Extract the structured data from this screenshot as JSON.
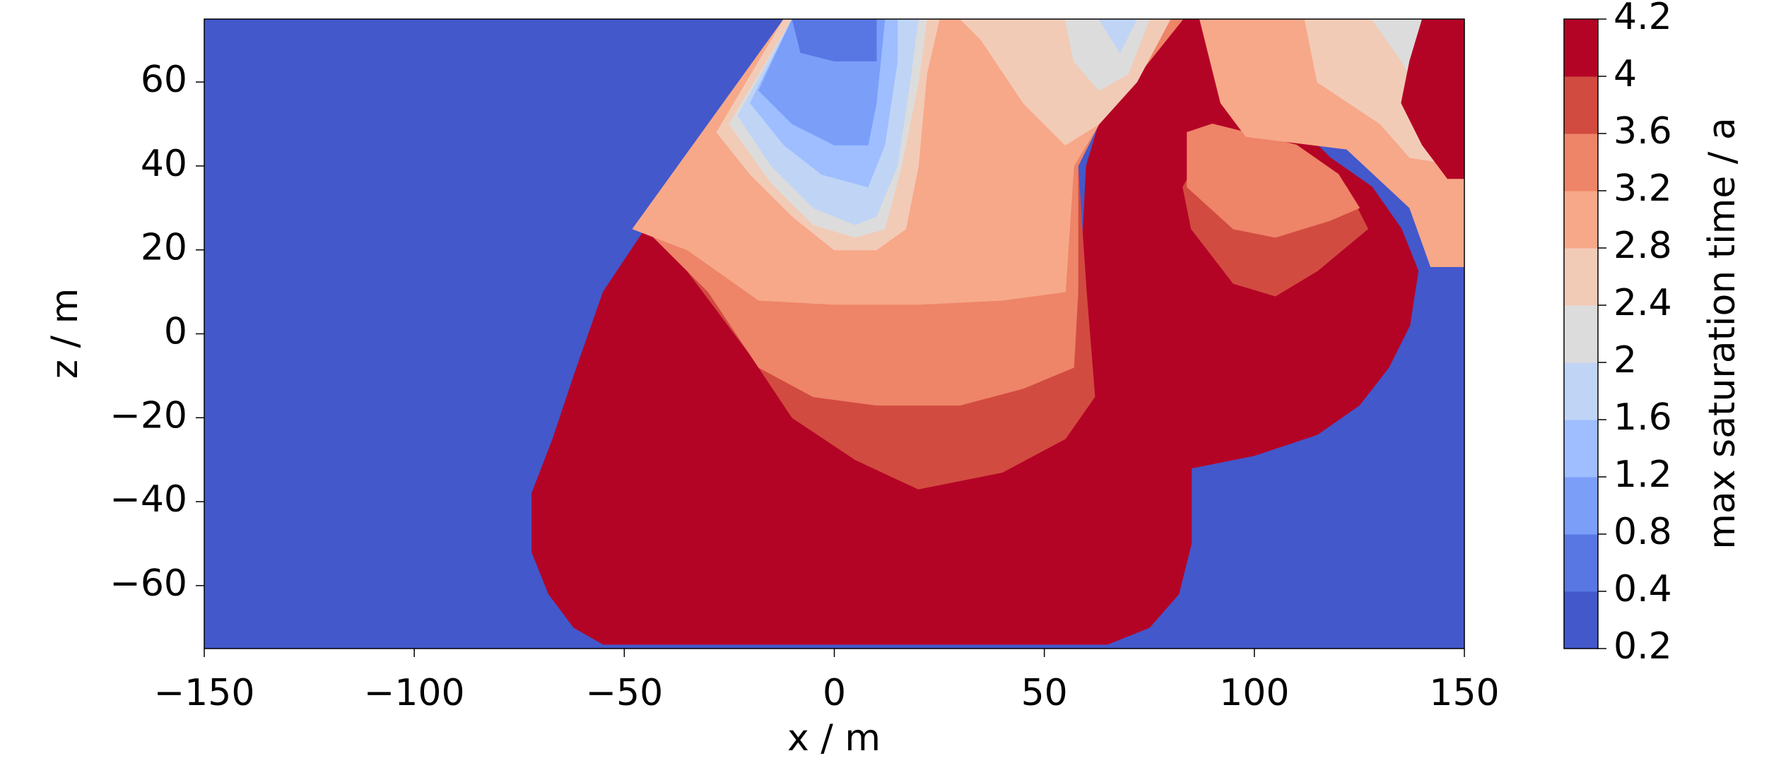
{
  "chart_data": {
    "type": "contour",
    "x_label": "x / m",
    "y_label": "z / m",
    "colorbar_label": "max saturation time / a",
    "xlim": [
      -150,
      150
    ],
    "xticks": [
      {
        "value": -150,
        "label": "−150"
      },
      {
        "value": -100,
        "label": "−100"
      },
      {
        "value": -50,
        "label": "−50"
      },
      0,
      50,
      100,
      150
    ],
    "ylim": [
      -75,
      75
    ],
    "yticks": [
      {
        "value": -60,
        "label": "−60"
      },
      {
        "value": -40,
        "label": "−40"
      },
      {
        "value": -20,
        "label": "−20"
      },
      0,
      20,
      40,
      60
    ],
    "levels": [
      0.2,
      0.4,
      0.8,
      1.2,
      1.6,
      2,
      2.4,
      2.8,
      3.2,
      3.6,
      4,
      4.2
    ],
    "colors": [
      "#4358cb",
      "#5977e3",
      "#7b9ff9",
      "#9ebeff",
      "#c0d4f5",
      "#dddcdc",
      "#f2cbb7",
      "#f7a889",
      "#ee8468",
      "#d24b40",
      "#b40426"
    ],
    "regions": [
      {
        "level": 0.2,
        "points": [
          [
            -150,
            75
          ],
          [
            150,
            75
          ],
          [
            150,
            -75
          ],
          [
            -150,
            -75
          ]
        ]
      },
      {
        "level": 4,
        "points": [
          [
            -45,
            25
          ],
          [
            -55,
            10
          ],
          [
            -62,
            -10
          ],
          [
            -67,
            -25
          ],
          [
            -72,
            -38
          ],
          [
            -72,
            -52
          ],
          [
            -68,
            -62
          ],
          [
            -62,
            -70
          ],
          [
            -55,
            -74
          ],
          [
            65,
            -74
          ],
          [
            75,
            -70
          ],
          [
            82,
            -62
          ],
          [
            85,
            -50
          ],
          [
            85,
            -32
          ],
          [
            100,
            -29
          ],
          [
            115,
            -24
          ],
          [
            125,
            -17
          ],
          [
            132,
            -8
          ],
          [
            137,
            2
          ],
          [
            139,
            15
          ],
          [
            135,
            25
          ],
          [
            128,
            35
          ],
          [
            118,
            42
          ],
          [
            100,
            60
          ],
          [
            90,
            75
          ],
          [
            83,
            75
          ],
          [
            72,
            62
          ],
          [
            63,
            50
          ],
          [
            60,
            40
          ],
          [
            58,
            0
          ],
          [
            40,
            -10
          ],
          [
            20,
            -15
          ],
          [
            0,
            -10
          ],
          [
            -20,
            0
          ],
          [
            -35,
            15
          ]
        ]
      },
      {
        "level": 3.6,
        "points": [
          [
            -45,
            25
          ],
          [
            -35,
            15
          ],
          [
            -20,
            -5
          ],
          [
            -10,
            -20
          ],
          [
            5,
            -30
          ],
          [
            20,
            -37
          ],
          [
            40,
            -33
          ],
          [
            55,
            -25
          ],
          [
            62,
            -15
          ],
          [
            60,
            10
          ],
          [
            58,
            40
          ],
          [
            63,
            50
          ],
          [
            75,
            65
          ],
          [
            83,
            75
          ],
          [
            -12,
            75
          ]
        ]
      },
      {
        "level": 3.2,
        "points": [
          [
            -45,
            25
          ],
          [
            -30,
            10
          ],
          [
            -18,
            -8
          ],
          [
            -5,
            -15
          ],
          [
            10,
            -17
          ],
          [
            30,
            -17
          ],
          [
            45,
            -13
          ],
          [
            57,
            -8
          ],
          [
            58,
            10
          ],
          [
            58,
            40
          ],
          [
            63,
            50
          ],
          [
            75,
            65
          ],
          [
            83,
            75
          ],
          [
            -12,
            75
          ]
        ]
      },
      {
        "level": 2.8,
        "points": [
          [
            -48,
            25
          ],
          [
            -35,
            20
          ],
          [
            -18,
            8
          ],
          [
            0,
            7
          ],
          [
            20,
            7
          ],
          [
            40,
            8
          ],
          [
            55,
            10
          ],
          [
            57,
            40
          ],
          [
            63,
            50
          ],
          [
            72,
            60
          ],
          [
            80,
            75
          ],
          [
            -12,
            75
          ]
        ]
      },
      {
        "level": 2.4,
        "points": [
          [
            30,
            75
          ],
          [
            35,
            70
          ],
          [
            45,
            55
          ],
          [
            55,
            45
          ],
          [
            63,
            50
          ],
          [
            72,
            60
          ],
          [
            80,
            75
          ]
        ]
      },
      {
        "level": 2,
        "points": [
          [
            55,
            75
          ],
          [
            57,
            65
          ],
          [
            63,
            58
          ],
          [
            70,
            62
          ],
          [
            75,
            75
          ]
        ]
      },
      {
        "level": 1.6,
        "points": [
          [
            63,
            75
          ],
          [
            68,
            67
          ],
          [
            72,
            75
          ]
        ]
      },
      {
        "level": 2.4,
        "points": [
          [
            -12,
            75
          ],
          [
            -28,
            48
          ],
          [
            -20,
            38
          ],
          [
            -10,
            28
          ],
          [
            0,
            20
          ],
          [
            10,
            20
          ],
          [
            17,
            25
          ],
          [
            20,
            40
          ],
          [
            22,
            62
          ],
          [
            25,
            75
          ]
        ]
      },
      {
        "level": 2,
        "points": [
          [
            -10,
            75
          ],
          [
            -25,
            50
          ],
          [
            -15,
            36
          ],
          [
            -5,
            26
          ],
          [
            5,
            23
          ],
          [
            12,
            25
          ],
          [
            16,
            40
          ],
          [
            20,
            60
          ],
          [
            22,
            75
          ]
        ]
      },
      {
        "level": 1.6,
        "points": [
          [
            -10,
            75
          ],
          [
            -23,
            52
          ],
          [
            -15,
            40
          ],
          [
            -5,
            30
          ],
          [
            5,
            26
          ],
          [
            10,
            28
          ],
          [
            15,
            40
          ],
          [
            18,
            60
          ],
          [
            20,
            75
          ]
        ]
      },
      {
        "level": 1.2,
        "points": [
          [
            -10,
            75
          ],
          [
            -20,
            55
          ],
          [
            -12,
            45
          ],
          [
            -3,
            38
          ],
          [
            8,
            35
          ],
          [
            12,
            45
          ],
          [
            15,
            65
          ],
          [
            15,
            75
          ]
        ]
      },
      {
        "level": 0.8,
        "points": [
          [
            -10,
            75
          ],
          [
            -18,
            58
          ],
          [
            -10,
            50
          ],
          [
            0,
            45
          ],
          [
            8,
            45
          ],
          [
            10,
            55
          ],
          [
            12,
            75
          ]
        ]
      },
      {
        "level": 0.4,
        "points": [
          [
            -10,
            75
          ],
          [
            -8,
            67
          ],
          [
            0,
            65
          ],
          [
            10,
            65
          ],
          [
            10,
            75
          ]
        ]
      },
      {
        "level": 3.6,
        "points": [
          [
            83,
            35
          ],
          [
            85,
            25
          ],
          [
            95,
            12
          ],
          [
            105,
            9
          ],
          [
            115,
            15
          ],
          [
            127,
            25
          ],
          [
            122,
            35
          ],
          [
            110,
            42
          ],
          [
            90,
            47
          ]
        ]
      },
      {
        "level": 3.2,
        "points": [
          [
            84,
            48
          ],
          [
            84,
            35
          ],
          [
            95,
            25
          ],
          [
            105,
            23
          ],
          [
            118,
            27
          ],
          [
            125,
            30
          ],
          [
            120,
            38
          ],
          [
            110,
            45
          ],
          [
            90,
            50
          ]
        ]
      },
      {
        "level": 2.8,
        "points": [
          [
            87,
            75
          ],
          [
            92,
            55
          ],
          [
            98,
            47
          ],
          [
            122,
            44
          ],
          [
            137,
            30
          ],
          [
            142,
            16
          ],
          [
            150,
            16
          ],
          [
            150,
            75
          ]
        ]
      },
      {
        "level": 2.4,
        "points": [
          [
            112,
            75
          ],
          [
            115,
            60
          ],
          [
            130,
            50
          ],
          [
            137,
            42
          ],
          [
            150,
            40
          ],
          [
            150,
            75
          ]
        ]
      },
      {
        "level": 2,
        "points": [
          [
            128,
            75
          ],
          [
            135,
            65
          ],
          [
            138,
            60
          ],
          [
            145,
            75
          ]
        ]
      },
      {
        "level": 4,
        "points": [
          [
            135,
            55
          ],
          [
            140,
            45
          ],
          [
            146,
            37
          ],
          [
            150,
            37
          ],
          [
            150,
            75
          ],
          [
            140,
            75
          ],
          [
            137,
            65
          ]
        ]
      }
    ]
  }
}
